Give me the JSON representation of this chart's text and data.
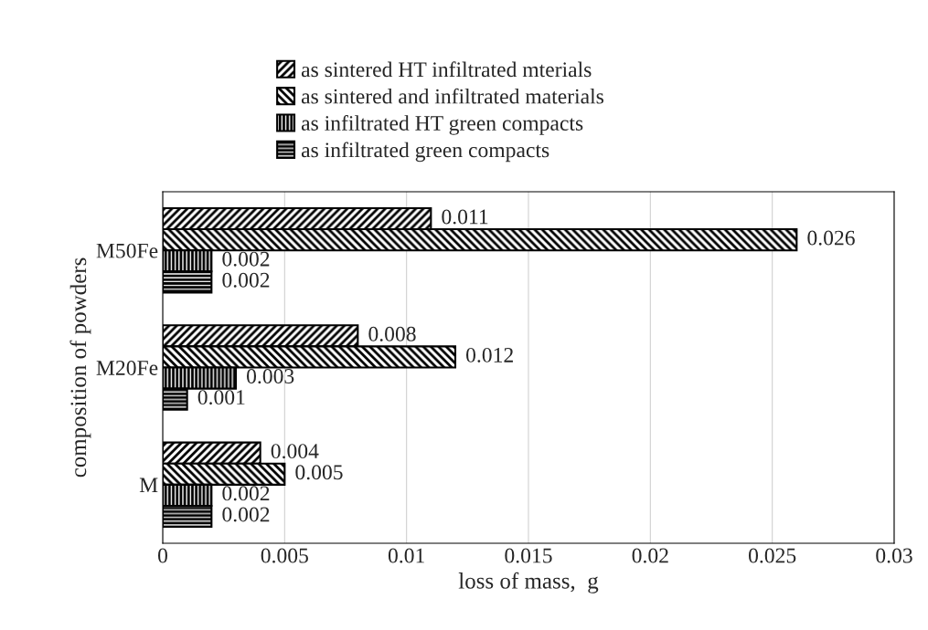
{
  "chart_data": {
    "type": "bar",
    "orientation": "horizontal",
    "categories": [
      "M50Fe",
      "M20Fe",
      "M"
    ],
    "series": [
      {
        "name": "as sintered HT infiltrated mterials",
        "color": "#000000",
        "values": [
          0.011,
          0.008,
          0.004
        ]
      },
      {
        "name": "as sintered and infiltrated materials",
        "color": "#000000",
        "values": [
          0.026,
          0.012,
          0.005
        ]
      },
      {
        "name": "as infiltrated HT green compacts",
        "color": "#000000",
        "values": [
          0.002,
          0.003,
          0.002
        ]
      },
      {
        "name": "as infiltrated green compacts",
        "color": "#000000",
        "values": [
          0.002,
          0.001,
          0.002
        ]
      }
    ],
    "xlabel": "loss of mass,  g",
    "ylabel": "composition of powders",
    "xlim": [
      0,
      0.03
    ],
    "xticks": [
      0,
      0.005,
      0.01,
      0.015,
      0.02,
      0.025,
      0.03
    ],
    "grid": "x",
    "legend": "top",
    "data_labels": true
  }
}
